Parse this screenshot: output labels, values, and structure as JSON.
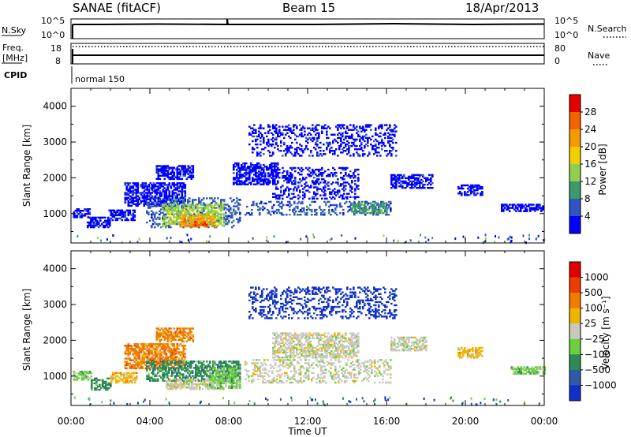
{
  "header": {
    "station_title": "SANAE (fitACF)",
    "beam_title": "Beam 15",
    "date_title": "18/Apr/2013"
  },
  "summary_panels": {
    "nsky": {
      "label": "N.Sky",
      "left_ticks": [
        "10^5",
        "10^0"
      ],
      "right_ticks": [
        "10^5",
        "10^0"
      ],
      "right_label": "N.Search",
      "right_label_style": "dotted"
    },
    "freq": {
      "label_line1": "Freq.",
      "label_line2": "[MHz]",
      "left_ticks": [
        "18",
        "8"
      ],
      "right_ticks": [
        "80",
        "0"
      ],
      "right_label": "Nave",
      "right_label_style": "dotted"
    },
    "cpid": {
      "label": "CPID",
      "mode_text": "normal 150"
    }
  },
  "chart_data": [
    {
      "type": "heatmap",
      "name": "power",
      "ylabel": "Slant Range [km]",
      "xlabel": "",
      "x_range_hours": [
        0,
        24
      ],
      "ylim": [
        180,
        4500
      ],
      "y_ticks": [
        "1000",
        "2000",
        "3000",
        "4000"
      ],
      "colorbar": {
        "label": "Power [dB]",
        "ticks": [
          "4",
          "8",
          "12",
          "16",
          "20",
          "24",
          "28"
        ],
        "colors": [
          "#0000ff",
          "#2e55c0",
          "#3c9a6a",
          "#8fd14f",
          "#f0d000",
          "#f59a00",
          "#f06400",
          "#e60000"
        ]
      },
      "scatter_regions": [
        {
          "x0": 0.1,
          "x1": 0.9,
          "y0": 880,
          "y1": 1120,
          "level": 0
        },
        {
          "x0": 0.8,
          "x1": 2.0,
          "y0": 600,
          "y1": 900,
          "level": 0
        },
        {
          "x0": 1.9,
          "x1": 3.2,
          "y0": 800,
          "y1": 1100,
          "level": 0
        },
        {
          "x0": 2.7,
          "x1": 5.8,
          "y0": 1200,
          "y1": 1850,
          "level": 0
        },
        {
          "x0": 4.3,
          "x1": 6.2,
          "y0": 1950,
          "y1": 2350,
          "level": 0
        },
        {
          "x0": 3.8,
          "x1": 8.6,
          "y0": 600,
          "y1": 1450,
          "level": 1
        },
        {
          "x0": 4.6,
          "x1": 7.8,
          "y0": 650,
          "y1": 1250,
          "level": 3
        },
        {
          "x0": 5.5,
          "x1": 7.3,
          "y0": 620,
          "y1": 950,
          "level": 5
        },
        {
          "x0": 6.1,
          "x1": 6.9,
          "y0": 620,
          "y1": 780,
          "level": 6
        },
        {
          "x0": 8.2,
          "x1": 10.5,
          "y0": 1800,
          "y1": 2400,
          "level": 0
        },
        {
          "x0": 8.8,
          "x1": 16.2,
          "y0": 950,
          "y1": 1350,
          "level": 1
        },
        {
          "x0": 10.2,
          "x1": 14.6,
          "y0": 1400,
          "y1": 2300,
          "level": 0
        },
        {
          "x0": 14.2,
          "x1": 16.0,
          "y0": 1000,
          "y1": 1300,
          "level": 2
        },
        {
          "x0": 16.2,
          "x1": 18.3,
          "y0": 1700,
          "y1": 2100,
          "level": 0
        },
        {
          "x0": 19.6,
          "x1": 20.8,
          "y0": 1500,
          "y1": 1800,
          "level": 0
        },
        {
          "x0": 21.8,
          "x1": 24.0,
          "y0": 1050,
          "y1": 1250,
          "level": 0
        },
        {
          "x0": 9.0,
          "x1": 16.5,
          "y0": 2600,
          "y1": 3500,
          "level": 0
        }
      ]
    },
    {
      "type": "heatmap",
      "name": "velocity",
      "ylabel": "Slant Range [km]",
      "xlabel": "Time UT",
      "x_range_hours": [
        0,
        24
      ],
      "x_ticks": [
        "00:00",
        "04:00",
        "08:00",
        "12:00",
        "16:00",
        "20:00",
        "00:00"
      ],
      "ylim": [
        180,
        4500
      ],
      "y_ticks": [
        "1000",
        "2000",
        "3000",
        "4000"
      ],
      "colorbar": {
        "label": "Velocity [m s⁻¹]",
        "ticks": [
          "1000",
          "500",
          "100",
          "25",
          "−25",
          "−100",
          "−500",
          "−1000"
        ],
        "colors": [
          "#1030c8",
          "#2f5aa8",
          "#2e8b57",
          "#6ccf3f",
          "#c8c8be",
          "#f0b400",
          "#ef7d00",
          "#ec3c00",
          "#e00000"
        ]
      },
      "scatter_regions": [
        {
          "x0": 0.1,
          "x1": 1.0,
          "y0": 880,
          "y1": 1120,
          "level": 3
        },
        {
          "x0": 1.0,
          "x1": 2.0,
          "y0": 600,
          "y1": 950,
          "level": 2
        },
        {
          "x0": 2.0,
          "x1": 3.3,
          "y0": 800,
          "y1": 1100,
          "level": 5
        },
        {
          "x0": 2.7,
          "x1": 5.8,
          "y0": 1200,
          "y1": 1900,
          "level": 6
        },
        {
          "x0": 4.3,
          "x1": 6.2,
          "y0": 1950,
          "y1": 2350,
          "level": 6
        },
        {
          "x0": 3.8,
          "x1": 8.6,
          "y0": 850,
          "y1": 1400,
          "level": 2
        },
        {
          "x0": 4.8,
          "x1": 7.8,
          "y0": 620,
          "y1": 900,
          "level": 4
        },
        {
          "x0": 7.0,
          "x1": 8.6,
          "y0": 650,
          "y1": 1200,
          "level": 3
        },
        {
          "x0": 8.8,
          "x1": 16.2,
          "y0": 800,
          "y1": 1450,
          "level": 4
        },
        {
          "x0": 10.2,
          "x1": 14.6,
          "y0": 1500,
          "y1": 2200,
          "level": 4
        },
        {
          "x0": 16.2,
          "x1": 18.0,
          "y0": 1700,
          "y1": 2100,
          "level": 4
        },
        {
          "x0": 19.6,
          "x1": 20.8,
          "y0": 1500,
          "y1": 1800,
          "level": 5
        },
        {
          "x0": 22.3,
          "x1": 24.0,
          "y0": 1050,
          "y1": 1250,
          "level": 3
        },
        {
          "x0": 9.0,
          "x1": 16.5,
          "y0": 2600,
          "y1": 3500,
          "level": 0
        }
      ]
    }
  ]
}
